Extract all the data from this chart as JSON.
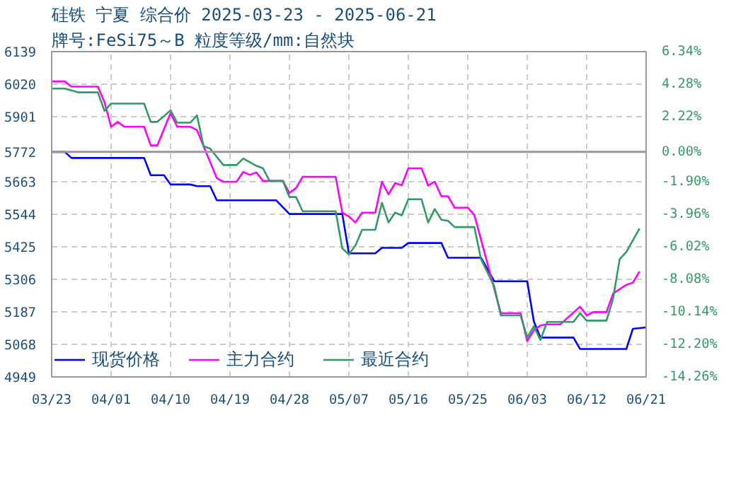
{
  "chart_data": {
    "type": "line",
    "title": "硅铁 宁夏 综合价 2025-03-23 - 2025-06-21",
    "subtitle": "牌号:FeSi75～B 粒度等级/mm:自然块",
    "xlim": [
      "2025-03-23",
      "2025-06-21"
    ],
    "xticks": [
      {
        "value": "2025-03-23",
        "label": "03/23"
      },
      {
        "value": "2025-04-01",
        "label": "04/01"
      },
      {
        "value": "2025-04-10",
        "label": "04/10"
      },
      {
        "value": "2025-04-19",
        "label": "04/19"
      },
      {
        "value": "2025-04-28",
        "label": "04/28"
      },
      {
        "value": "2025-05-07",
        "label": "05/07"
      },
      {
        "value": "2025-05-16",
        "label": "05/16"
      },
      {
        "value": "2025-05-25",
        "label": "05/25"
      },
      {
        "value": "2025-06-03",
        "label": "06/03"
      },
      {
        "value": "2025-06-12",
        "label": "06/12"
      },
      {
        "value": "2025-06-21",
        "label": "06/21"
      }
    ],
    "ylim": [
      4949,
      6139
    ],
    "yticks": [
      4949,
      5068,
      5187,
      5306,
      5425,
      5544,
      5663,
      5772,
      5901,
      6020,
      6139
    ],
    "y2lim": [
      -14.26,
      6.34
    ],
    "y2ticks": [
      {
        "value": -14.26,
        "label": "-14.26%"
      },
      {
        "value": -12.2,
        "label": "-12.20%"
      },
      {
        "value": -10.14,
        "label": "-10.14%"
      },
      {
        "value": -8.08,
        "label": "-8.08%"
      },
      {
        "value": -6.02,
        "label": "-6.02%"
      },
      {
        "value": -3.96,
        "label": "-3.96%"
      },
      {
        "value": -1.9,
        "label": "-1.90%"
      },
      {
        "value": 0,
        "label": "0.00%"
      },
      {
        "value": 2.22,
        "label": "2.22%"
      },
      {
        "value": 4.28,
        "label": "4.28%"
      },
      {
        "value": 6.34,
        "label": "6.34%"
      }
    ],
    "ref_lines": [
      {
        "axis": "y",
        "value": 5772,
        "color": "#999999"
      }
    ],
    "grid": true,
    "legend": "bottom left",
    "series": [
      {
        "name": "现货价格",
        "color": "#0000ff",
        "x": [
          "2025-03-23",
          "2025-03-25",
          "2025-03-26",
          "2025-04-06",
          "2025-04-07",
          "2025-04-09",
          "2025-04-10",
          "2025-04-13",
          "2025-04-14",
          "2025-04-16",
          "2025-04-17",
          "2025-04-26",
          "2025-04-28",
          "2025-05-06",
          "2025-05-07",
          "2025-05-11",
          "2025-05-12",
          "2025-05-15",
          "2025-05-16",
          "2025-05-21",
          "2025-05-22",
          "2025-05-27",
          "2025-05-29",
          "2025-06-03",
          "2025-06-04",
          "2025-06-05",
          "2025-06-10",
          "2025-06-11",
          "2025-06-18",
          "2025-06-19",
          "2025-06-21"
        ],
        "values": [
          5772,
          5772,
          5750,
          5750,
          5687,
          5687,
          5653,
          5653,
          5647,
          5647,
          5595,
          5595,
          5545,
          5545,
          5401,
          5401,
          5421,
          5421,
          5439,
          5439,
          5385,
          5385,
          5299,
          5299,
          5152,
          5093,
          5093,
          5051,
          5051,
          5125,
          5130
        ]
      },
      {
        "name": "主力合约",
        "color": "#ff00ff",
        "x": [
          "2025-03-23",
          "2025-03-25",
          "2025-03-26",
          "2025-03-30",
          "2025-03-31",
          "2025-04-01",
          "2025-04-02",
          "2025-04-03",
          "2025-04-06",
          "2025-04-07",
          "2025-04-08",
          "2025-04-10",
          "2025-04-11",
          "2025-04-13",
          "2025-04-14",
          "2025-04-17",
          "2025-04-18",
          "2025-04-20",
          "2025-04-21",
          "2025-04-22",
          "2025-04-23",
          "2025-04-24",
          "2025-04-27",
          "2025-04-28",
          "2025-04-29",
          "2025-04-30",
          "2025-05-05",
          "2025-05-06",
          "2025-05-07",
          "2025-05-08",
          "2025-05-09",
          "2025-05-11",
          "2025-05-12",
          "2025-05-13",
          "2025-05-14",
          "2025-05-15",
          "2025-05-16",
          "2025-05-18",
          "2025-05-19",
          "2025-05-20",
          "2025-05-21",
          "2025-05-22",
          "2025-05-23",
          "2025-05-25",
          "2025-05-26",
          "2025-05-28",
          "2025-05-30",
          "2025-06-02",
          "2025-06-03",
          "2025-06-04",
          "2025-06-05",
          "2025-06-06",
          "2025-06-08",
          "2025-06-11",
          "2025-06-12",
          "2025-06-13",
          "2025-06-15",
          "2025-06-16",
          "2025-06-18",
          "2025-06-19",
          "2025-06-20"
        ],
        "values": [
          6030,
          6030,
          6011,
          6011,
          5954,
          5864,
          5882,
          5864,
          5864,
          5796,
          5796,
          5914,
          5864,
          5864,
          5852,
          5676,
          5663,
          5663,
          5699,
          5688,
          5697,
          5666,
          5666,
          5622,
          5640,
          5681,
          5681,
          5550,
          5536,
          5514,
          5550,
          5550,
          5663,
          5617,
          5658,
          5650,
          5712,
          5712,
          5649,
          5663,
          5610,
          5610,
          5568,
          5568,
          5541,
          5362,
          5182,
          5182,
          5080,
          5120,
          5137,
          5141,
          5141,
          5206,
          5174,
          5186,
          5186,
          5254,
          5286,
          5294,
          5335
        ]
      },
      {
        "name": "最近合约",
        "color": "#339966",
        "x": [
          "2025-03-23",
          "2025-03-25",
          "2025-03-27",
          "2025-03-30",
          "2025-03-31",
          "2025-04-01",
          "2025-04-06",
          "2025-04-07",
          "2025-04-08",
          "2025-04-10",
          "2025-04-11",
          "2025-04-13",
          "2025-04-14",
          "2025-04-15",
          "2025-04-16",
          "2025-04-18",
          "2025-04-20",
          "2025-04-21",
          "2025-04-23",
          "2025-04-24",
          "2025-04-25",
          "2025-04-27",
          "2025-04-28",
          "2025-04-29",
          "2025-04-30",
          "2025-05-05",
          "2025-05-06",
          "2025-05-07",
          "2025-05-08",
          "2025-05-09",
          "2025-05-11",
          "2025-05-12",
          "2025-05-13",
          "2025-05-14",
          "2025-05-15",
          "2025-05-16",
          "2025-05-18",
          "2025-05-19",
          "2025-05-20",
          "2025-05-21",
          "2025-05-22",
          "2025-05-23",
          "2025-05-26",
          "2025-05-27",
          "2025-05-29",
          "2025-05-30",
          "2025-06-02",
          "2025-06-03",
          "2025-06-04",
          "2025-06-05",
          "2025-06-06",
          "2025-06-10",
          "2025-06-11",
          "2025-06-12",
          "2025-06-15",
          "2025-06-16",
          "2025-06-17",
          "2025-06-18",
          "2025-06-20"
        ],
        "values": [
          6004,
          6004,
          5990,
          5990,
          5922,
          5949,
          5949,
          5882,
          5882,
          5924,
          5879,
          5879,
          5906,
          5793,
          5784,
          5724,
          5724,
          5748,
          5721,
          5712,
          5666,
          5666,
          5607,
          5607,
          5555,
          5555,
          5419,
          5397,
          5430,
          5487,
          5487,
          5586,
          5514,
          5550,
          5540,
          5599,
          5599,
          5514,
          5563,
          5524,
          5520,
          5497,
          5497,
          5380,
          5281,
          5174,
          5174,
          5093,
          5134,
          5084,
          5150,
          5150,
          5182,
          5155,
          5155,
          5236,
          5380,
          5406,
          5492
        ]
      }
    ]
  }
}
